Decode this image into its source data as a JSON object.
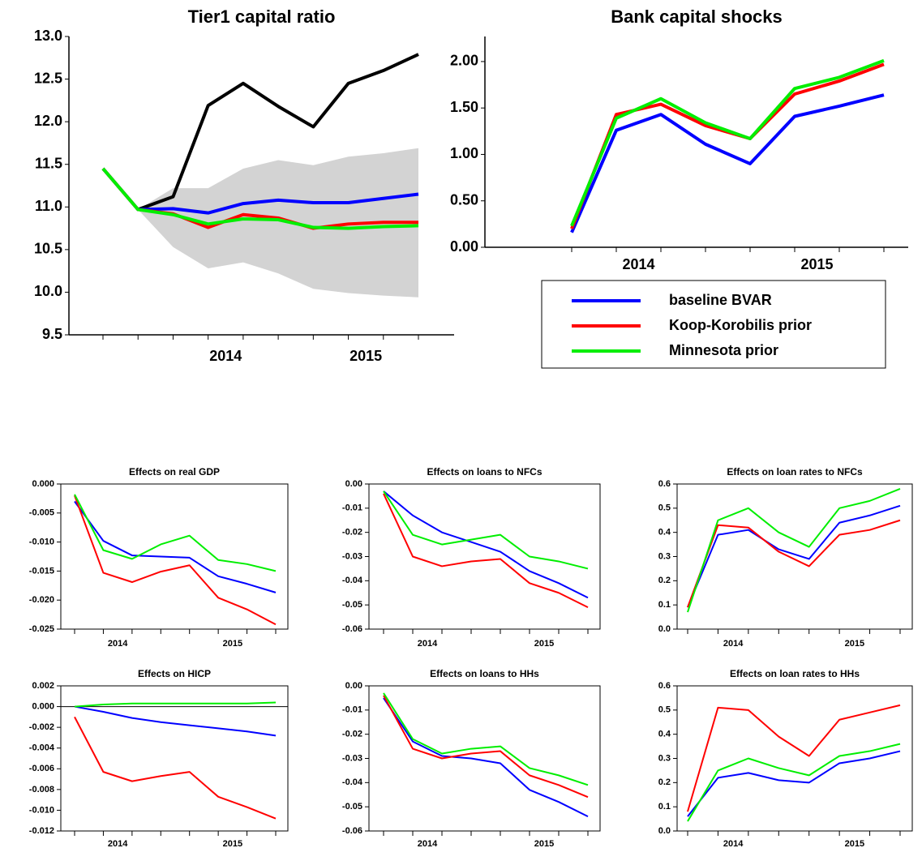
{
  "legend": [
    {
      "name": "baseline BVAR",
      "color": "#0000ff"
    },
    {
      "name": "Koop-Korobilis prior",
      "color": "#ff0000"
    },
    {
      "name": "Minnesota prior",
      "color": "#00ee00"
    }
  ],
  "chart_data": [
    {
      "type": "line",
      "title": "Tier1 capital ratio",
      "categories": [
        null,
        null,
        null,
        null,
        null,
        null,
        null,
        null,
        null,
        null
      ],
      "xgroups": [
        {
          "label": "2014",
          "span": [
            2,
            5
          ]
        },
        {
          "label": "2015",
          "span": [
            6,
            9
          ]
        }
      ],
      "ylim": [
        9.5,
        13.0
      ],
      "yticks": [
        9.5,
        {
          "value": 10,
          "label": "10.0"
        },
        10.5,
        {
          "value": 11,
          "label": "11.0"
        },
        11.5,
        {
          "value": 12,
          "label": "12.0"
        },
        12.5,
        {
          "value": 13,
          "label": "13.0"
        }
      ],
      "band": {
        "color": "#d3d3d3",
        "upper": [
          null,
          10.97,
          11.22,
          11.22,
          11.45,
          11.55,
          11.49,
          11.59,
          11.63,
          11.69
        ],
        "lower": [
          null,
          10.97,
          10.53,
          10.28,
          10.35,
          10.22,
          10.04,
          9.99,
          9.96,
          9.94
        ]
      },
      "series": [
        {
          "color": "#000000",
          "values": [
            null,
            10.97,
            11.12,
            12.19,
            12.45,
            12.18,
            11.94,
            12.45,
            12.6,
            12.79
          ]
        },
        {
          "color": "#0000ff",
          "values": [
            11.45,
            10.97,
            10.98,
            10.93,
            11.04,
            11.08,
            11.05,
            11.05,
            11.1,
            11.15
          ]
        },
        {
          "color": "#ff0000",
          "values": [
            11.45,
            10.97,
            10.92,
            10.76,
            10.91,
            10.87,
            10.75,
            10.8,
            10.82,
            10.82
          ]
        },
        {
          "color": "#00ee00",
          "values": [
            11.45,
            10.97,
            10.91,
            10.8,
            10.86,
            10.85,
            10.76,
            10.75,
            10.77,
            10.78
          ]
        }
      ]
    },
    {
      "type": "line",
      "title": "Bank capital shocks",
      "categories": [
        null,
        null,
        null,
        null,
        null,
        null,
        null,
        null
      ],
      "xgroups": [
        {
          "label": "2014",
          "span": [
            0,
            3
          ]
        },
        {
          "label": "2015",
          "span": [
            4,
            7
          ]
        }
      ],
      "ylim": [
        0,
        2.27
      ],
      "yticks": [
        {
          "value": 0,
          "label": "0.00"
        },
        {
          "value": 0.5,
          "label": "0.50"
        },
        {
          "value": 1,
          "label": "1.00"
        },
        {
          "value": 1.5,
          "label": "1.50"
        },
        {
          "value": 2,
          "label": "2.00"
        }
      ],
      "series": [
        {
          "color": "#0000ff",
          "values": [
            0.16,
            1.26,
            1.43,
            1.11,
            0.9,
            1.41,
            1.52,
            1.64
          ]
        },
        {
          "color": "#ff0000",
          "values": [
            0.2,
            1.43,
            1.54,
            1.31,
            1.17,
            1.65,
            1.79,
            1.97
          ]
        },
        {
          "color": "#00ee00",
          "values": [
            0.23,
            1.39,
            1.6,
            1.34,
            1.17,
            1.71,
            1.83,
            2.01
          ]
        }
      ]
    },
    {
      "type": "line",
      "title": "Effects on real GDP",
      "categories": [
        null,
        null,
        null,
        null,
        null,
        null,
        null,
        null
      ],
      "xgroups": [
        {
          "label": "2014",
          "span": [
            0,
            3
          ]
        },
        {
          "label": "2015",
          "span": [
            4,
            7
          ]
        }
      ],
      "ylim": [
        -0.025,
        0
      ],
      "yticks": [
        -0.025,
        {
          "value": -0.02,
          "label": "-0.020"
        },
        -0.015,
        {
          "value": -0.01,
          "label": "-0.010"
        },
        -0.005,
        {
          "value": 0,
          "label": "0.000"
        }
      ],
      "series": [
        {
          "color": "#0000ff",
          "values": [
            -0.003,
            -0.0098,
            -0.0123,
            -0.0125,
            -0.0127,
            -0.0159,
            -0.0172,
            -0.0187
          ]
        },
        {
          "color": "#ff0000",
          "values": [
            -0.002,
            -0.0153,
            -0.0169,
            -0.0151,
            -0.014,
            -0.0196,
            -0.0216,
            -0.0242
          ]
        },
        {
          "color": "#00ee00",
          "values": [
            -0.0018,
            -0.0114,
            -0.0129,
            -0.0104,
            -0.0089,
            -0.0131,
            -0.0138,
            -0.015
          ]
        }
      ]
    },
    {
      "type": "line",
      "title": "Effects on loans to NFCs",
      "categories": [
        null,
        null,
        null,
        null,
        null,
        null,
        null,
        null
      ],
      "xgroups": [
        {
          "label": "2014",
          "span": [
            0,
            3
          ]
        },
        {
          "label": "2015",
          "span": [
            4,
            7
          ]
        }
      ],
      "ylim": [
        -0.06,
        0
      ],
      "yticks": [
        -0.06,
        -0.05,
        -0.04,
        -0.03,
        -0.02,
        -0.01,
        {
          "value": 0,
          "label": "0.00"
        }
      ],
      "series": [
        {
          "color": "#0000ff",
          "values": [
            -0.003,
            -0.013,
            -0.02,
            -0.024,
            -0.028,
            -0.036,
            -0.041,
            -0.047
          ]
        },
        {
          "color": "#ff0000",
          "values": [
            -0.004,
            -0.03,
            -0.034,
            -0.032,
            -0.031,
            -0.041,
            -0.045,
            -0.051
          ]
        },
        {
          "color": "#00ee00",
          "values": [
            -0.003,
            -0.021,
            -0.025,
            -0.023,
            -0.021,
            -0.03,
            -0.032,
            -0.035
          ]
        }
      ]
    },
    {
      "type": "line",
      "title": "Effects on loan rates to NFCs",
      "categories": [
        null,
        null,
        null,
        null,
        null,
        null,
        null,
        null
      ],
      "xgroups": [
        {
          "label": "2014",
          "span": [
            0,
            3
          ]
        },
        {
          "label": "2015",
          "span": [
            4,
            7
          ]
        }
      ],
      "ylim": [
        0,
        0.6
      ],
      "yticks": [
        {
          "value": 0,
          "label": "0.0"
        },
        0.1,
        0.2,
        0.3,
        0.4,
        0.5,
        0.6
      ],
      "series": [
        {
          "color": "#0000ff",
          "values": [
            0.09,
            0.39,
            0.41,
            0.33,
            0.29,
            0.44,
            0.47,
            0.51
          ]
        },
        {
          "color": "#ff0000",
          "values": [
            0.09,
            0.43,
            0.42,
            0.32,
            0.26,
            0.39,
            0.41,
            0.45
          ]
        },
        {
          "color": "#00ee00",
          "values": [
            0.07,
            0.45,
            0.5,
            0.4,
            0.34,
            0.5,
            0.53,
            0.58
          ]
        }
      ]
    },
    {
      "type": "line",
      "title": "Effects on HICP",
      "categories": [
        null,
        null,
        null,
        null,
        null,
        null,
        null,
        null
      ],
      "xgroups": [
        {
          "label": "2014",
          "span": [
            0,
            3
          ]
        },
        {
          "label": "2015",
          "span": [
            4,
            7
          ]
        }
      ],
      "ylim": [
        -0.012,
        0.002
      ],
      "zero_line": true,
      "yticks": [
        -0.012,
        {
          "value": -0.01,
          "label": "-0.010"
        },
        -0.008,
        -0.006,
        -0.004,
        -0.002,
        {
          "value": 0,
          "label": "0.000"
        },
        0.002
      ],
      "series": [
        {
          "color": "#0000ff",
          "values": [
            0,
            -0.0005,
            -0.0011,
            -0.0015,
            -0.0018,
            -0.0021,
            -0.0024,
            -0.0028
          ]
        },
        {
          "color": "#ff0000",
          "values": [
            -0.001,
            -0.0063,
            -0.0072,
            -0.0067,
            -0.0063,
            -0.0087,
            -0.0097,
            -0.0108
          ]
        },
        {
          "color": "#00ee00",
          "values": [
            0,
            0.0002,
            0.0003,
            0.0003,
            0.0003,
            0.0003,
            0.0003,
            0.0004
          ]
        }
      ]
    },
    {
      "type": "line",
      "title": "Effects on loans to HHs",
      "categories": [
        null,
        null,
        null,
        null,
        null,
        null,
        null,
        null
      ],
      "xgroups": [
        {
          "label": "2014",
          "span": [
            0,
            3
          ]
        },
        {
          "label": "2015",
          "span": [
            4,
            7
          ]
        }
      ],
      "ylim": [
        -0.06,
        0
      ],
      "yticks": [
        -0.06,
        -0.05,
        -0.04,
        -0.03,
        -0.02,
        -0.01,
        {
          "value": 0,
          "label": "0.00"
        }
      ],
      "series": [
        {
          "color": "#0000ff",
          "values": [
            -0.005,
            -0.023,
            -0.029,
            -0.03,
            -0.032,
            -0.043,
            -0.048,
            -0.054
          ]
        },
        {
          "color": "#ff0000",
          "values": [
            -0.004,
            -0.026,
            -0.03,
            -0.028,
            -0.027,
            -0.037,
            -0.041,
            -0.046
          ]
        },
        {
          "color": "#00ee00",
          "values": [
            -0.003,
            -0.022,
            -0.028,
            -0.026,
            -0.025,
            -0.034,
            -0.037,
            -0.041
          ]
        }
      ]
    },
    {
      "type": "line",
      "title": "Effects on loan rates to HHs",
      "categories": [
        null,
        null,
        null,
        null,
        null,
        null,
        null,
        null
      ],
      "xgroups": [
        {
          "label": "2014",
          "span": [
            0,
            3
          ]
        },
        {
          "label": "2015",
          "span": [
            4,
            7
          ]
        }
      ],
      "ylim": [
        0,
        0.6
      ],
      "yticks": [
        {
          "value": 0,
          "label": "0.0"
        },
        0.1,
        0.2,
        0.3,
        0.4,
        0.5,
        0.6
      ],
      "series": [
        {
          "color": "#0000ff",
          "values": [
            0.06,
            0.22,
            0.24,
            0.21,
            0.2,
            0.28,
            0.3,
            0.33
          ]
        },
        {
          "color": "#ff0000",
          "values": [
            0.08,
            0.51,
            0.5,
            0.39,
            0.31,
            0.46,
            0.49,
            0.52
          ]
        },
        {
          "color": "#00ee00",
          "values": [
            0.04,
            0.25,
            0.3,
            0.26,
            0.23,
            0.31,
            0.33,
            0.36
          ]
        }
      ]
    }
  ]
}
